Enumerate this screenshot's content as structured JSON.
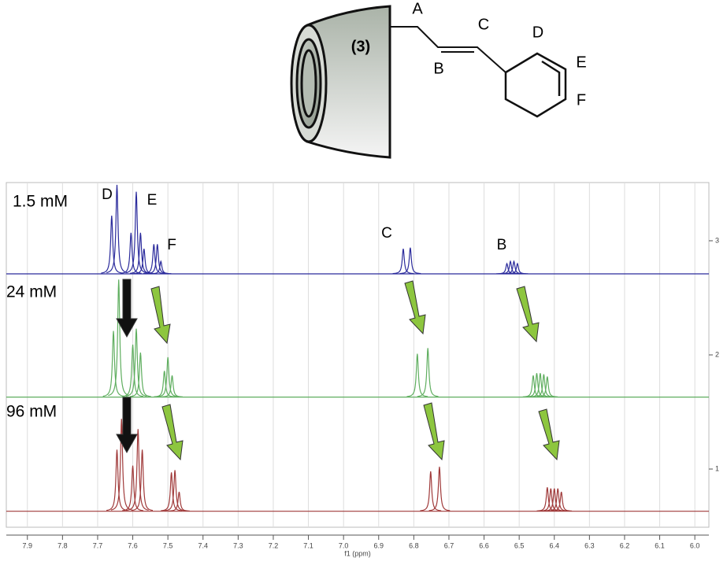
{
  "molecule": {
    "compound": "(3)",
    "labels": [
      "A",
      "B",
      "C",
      "D",
      "E",
      "F"
    ]
  },
  "chart_data": {
    "type": "nmr",
    "x_label": "f1 (ppm)",
    "xlim": [
      7.96,
      5.96
    ],
    "xticks": [
      7.9,
      7.8,
      7.7,
      7.6,
      7.5,
      7.4,
      7.3,
      7.2,
      7.1,
      {
        "value": 7,
        "label": "7.0"
      },
      6.9,
      6.8,
      6.7,
      6.6,
      6.5,
      6.4,
      6.3,
      6.2,
      6.1,
      {
        "value": 6,
        "label": "6.0"
      }
    ],
    "ylim": [
      0.49,
      3.51
    ],
    "yticks": [
      1,
      2,
      3
    ],
    "grid": true,
    "annotations": [
      "D",
      "E",
      "F",
      "C",
      "B"
    ],
    "series": [
      {
        "name": "1.5 mM",
        "color": "#2b2b9c",
        "baseline": 2.71,
        "x": [
          7.66,
          7.645,
          7.605,
          7.59,
          7.578,
          7.568,
          7.54,
          7.53,
          7.52,
          6.83,
          6.81,
          6.535,
          6.525,
          6.515,
          6.505
        ],
        "values": [
          3.22,
          3.49,
          3.07,
          3.43,
          3.07,
          2.93,
          2.97,
          2.97,
          2.82,
          2.93,
          2.94,
          2.8,
          2.82,
          2.82,
          2.8
        ]
      },
      {
        "name": "24 mM",
        "color": "#5fae5f",
        "baseline": 1.63,
        "x": [
          7.655,
          7.64,
          7.6,
          7.59,
          7.578,
          7.51,
          7.5,
          7.488,
          6.79,
          6.76,
          6.46,
          6.45,
          6.44,
          6.43,
          6.42
        ],
        "values": [
          2.21,
          2.66,
          2.09,
          2.23,
          2.02,
          1.86,
          1.98,
          1.82,
          2.01,
          2.06,
          1.82,
          1.84,
          1.84,
          1.83,
          1.81
        ]
      },
      {
        "name": "96 mM",
        "color": "#a03a3a",
        "baseline": 0.63,
        "x": [
          7.645,
          7.632,
          7.6,
          7.585,
          7.573,
          7.49,
          7.48,
          7.468,
          6.752,
          6.727,
          6.42,
          6.41,
          6.4,
          6.39,
          6.38
        ],
        "values": [
          1.17,
          1.44,
          1.03,
          1.35,
          1.17,
          0.97,
          0.99,
          0.8,
          0.98,
          1.02,
          0.84,
          0.83,
          0.83,
          0.83,
          0.8
        ]
      }
    ]
  }
}
